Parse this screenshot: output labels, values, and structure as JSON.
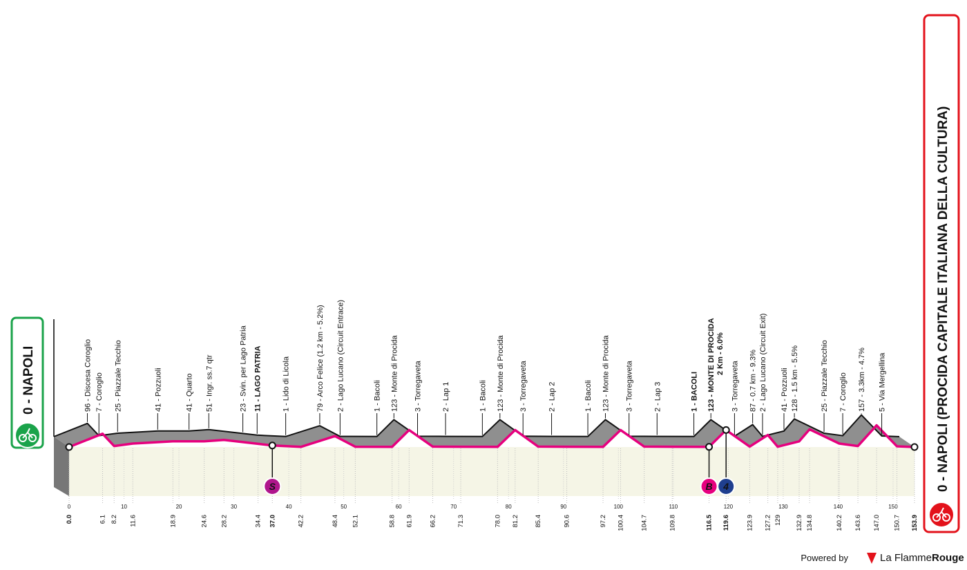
{
  "chart_data": {
    "type": "profile",
    "x": [
      {
        "value": 0,
        "label": "0.0"
      },
      6.1,
      8.2,
      11.6,
      18.9,
      24.6,
      28.2,
      34.4,
      {
        "value": 37,
        "label": "37.0"
      },
      42.2,
      48.4,
      52.1,
      58.8,
      61.9,
      66.2,
      71.3,
      {
        "value": 78,
        "label": "78.0"
      },
      81.2,
      85.4,
      90.6,
      97.2,
      100.4,
      104.7,
      109.8,
      116.5,
      119.6,
      123.9,
      127.2,
      129.0,
      132.9,
      134.8,
      140.2,
      143.6,
      {
        "value": 147,
        "label": "147.0"
      },
      150.7,
      153.9
    ],
    "values": [
      0,
      96,
      7,
      25,
      41,
      41,
      51,
      23,
      11,
      1,
      79,
      2,
      1,
      123,
      3,
      2,
      1,
      123,
      3,
      2,
      1,
      123,
      3,
      2,
      1,
      123,
      3,
      87,
      2,
      41,
      128,
      25,
      7,
      157,
      5,
      0
    ],
    "labels": [
      "0 - NAPOLI",
      "96 - Discesa Coroglio",
      "7 - Coroglio",
      "25 - Piazzale Tecchio",
      "41 - Pozzuoli",
      "41 - Quarto",
      "51 - Ingr. ss.7 qtr",
      "23 - Svin. per Lago Patria",
      "11 - LAGO PATRIA",
      "1 - Lido di Licola",
      "79 - Arco Felice (1.2 km - 5.2%)",
      "2 - Lago Lucano (Circuit Entrace)",
      "1 - Bacoli",
      "123 - Monte di Procida",
      "3 - Torregaveta",
      "2 - Lap 1",
      "1 - Bacoli",
      "123 - Monte di Procida",
      "3 - Torregaveta",
      "2 - Lap 2",
      "1 - Bacoli",
      "123 - Monte di Procida",
      "3 - Torregaveta",
      "2 - Lap 3",
      "1 - BACOLI",
      "123 - MONTE DI PROCIDA",
      "3 - Torregaveta",
      "87 - 0.7 km - 9.3%",
      "2 - Lago Lucano (Circuit Exit)",
      "41 - Pozzuoli",
      "128 - 1.5 km - 5.5%",
      "25 - Piazzale Tecchio",
      "7 - Coroglio",
      "157 - 3.3km - 4.7%",
      "5 - Via Mergellina",
      "0 - NAPOLI (PROCIDA CAPITALE ITALIANA DELLA CULTURA)"
    ],
    "markers": [
      {
        "label": "S",
        "x": 37.0,
        "color": "#b0168c"
      },
      {
        "label": "B",
        "x": 116.5,
        "color": "#e6007e"
      },
      {
        "label": "4",
        "x": 119.6,
        "color": "#1f3f8f",
        "note": "2 Km - 6.0%"
      }
    ],
    "xlim": [
      0,
      153.9
    ],
    "ylim": [
      0,
      800
    ],
    "xticks": [
      0,
      10,
      20,
      30,
      40,
      50,
      60,
      70,
      80,
      90,
      100,
      110,
      120,
      130,
      140,
      150
    ],
    "profile_color": "#8f8f8f",
    "line_color": "#e6007e",
    "ground_color": "#f5f5e6"
  },
  "footer": {
    "powered_by": "Powered by",
    "brand_a": "La Flamme",
    "brand_b": "Rouge"
  }
}
